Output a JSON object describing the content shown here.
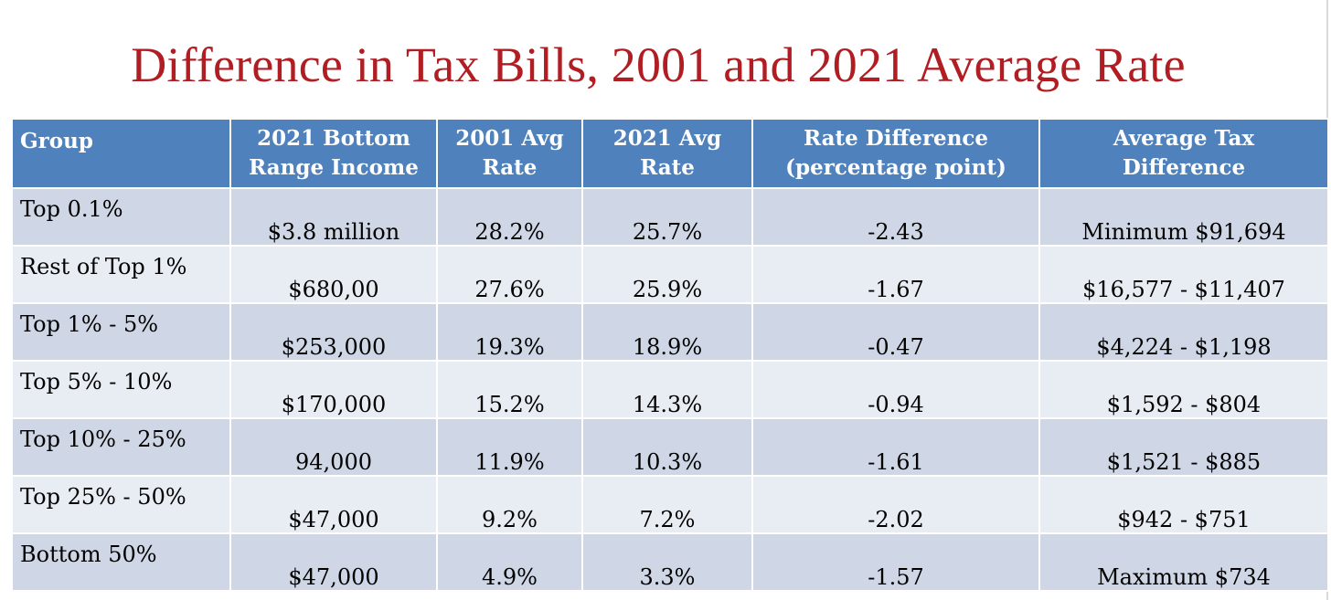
{
  "title": "Difference in Tax Bills, 2001 and 2021 Average Rate",
  "table": {
    "headers": {
      "group": "Group",
      "bottom_income_line1": "2021 Bottom",
      "bottom_income_line2": "Range Income",
      "rate_2001_line1": "2001 Avg",
      "rate_2001_line2": "Rate",
      "rate_2021_line1": "2021 Avg",
      "rate_2021_line2": "Rate",
      "rate_diff_line1": "Rate Difference",
      "rate_diff_line2": "(percentage point)",
      "tax_diff_line1": "Average Tax",
      "tax_diff_line2": "Difference"
    },
    "rows": [
      {
        "group": "Top 0.1%",
        "bottom_income": "$3.8 million",
        "rate_2001": "28.2%",
        "rate_2021": "25.7%",
        "rate_diff": "-2.43",
        "tax_diff": "Minimum $91,694"
      },
      {
        "group": "Rest of Top 1%",
        "bottom_income": "$680,00",
        "rate_2001": "27.6%",
        "rate_2021": "25.9%",
        "rate_diff": "-1.67",
        "tax_diff": "$16,577 - $11,407"
      },
      {
        "group": "Top 1% - 5%",
        "bottom_income": "$253,000",
        "rate_2001": "19.3%",
        "rate_2021": "18.9%",
        "rate_diff": "-0.47",
        "tax_diff": "$4,224 - $1,198"
      },
      {
        "group": "Top 5% - 10%",
        "bottom_income": "$170,000",
        "rate_2001": "15.2%",
        "rate_2021": "14.3%",
        "rate_diff": "-0.94",
        "tax_diff": "$1,592 - $804"
      },
      {
        "group": "Top 10% - 25%",
        "bottom_income": "94,000",
        "rate_2001": "11.9%",
        "rate_2021": "10.3%",
        "rate_diff": "-1.61",
        "tax_diff": "$1,521 - $885"
      },
      {
        "group": "Top 25% - 50%",
        "bottom_income": "$47,000",
        "rate_2001": "9.2%",
        "rate_2021": "7.2%",
        "rate_diff": "-2.02",
        "tax_diff": "$942 - $751"
      },
      {
        "group": "Bottom 50%",
        "bottom_income": "$47,000",
        "rate_2001": "4.9%",
        "rate_2021": "3.3%",
        "rate_diff": "-1.57",
        "tax_diff": "Maximum $734"
      }
    ]
  },
  "colors": {
    "title": "#b01e23",
    "header_bg": "#4f81bd",
    "row_dark": "#cfd7e6",
    "row_light": "#e8ecf3"
  }
}
